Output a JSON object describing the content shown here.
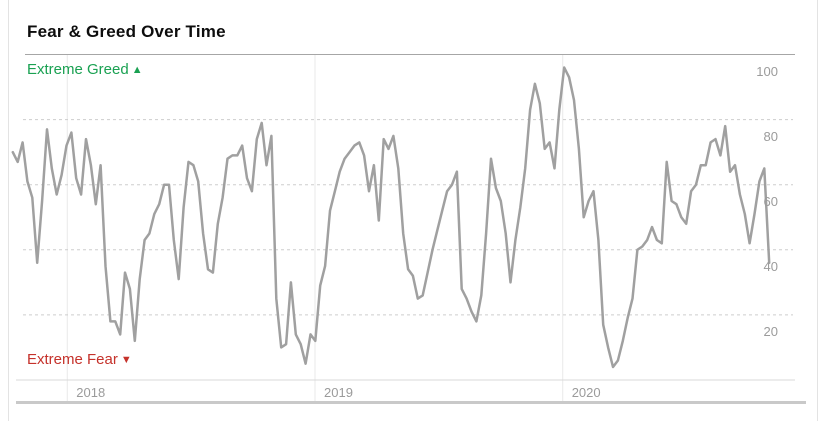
{
  "page": {
    "background": "#ffffff",
    "side_border_color": "#e3e3e3"
  },
  "header": {
    "title": "Fear & Greed Over Time"
  },
  "chart_data": {
    "type": "line",
    "title": "Fear & Greed Over Time",
    "ylim": [
      0,
      100
    ],
    "y_ticks": [
      "100",
      "80",
      "60",
      "40",
      "20"
    ],
    "y_tick_values": [
      100,
      80,
      60,
      40,
      20
    ],
    "x_ticks": [
      {
        "label": "2018",
        "year": 2018
      },
      {
        "label": "2019",
        "year": 2019
      },
      {
        "label": "2020",
        "year": 2020
      }
    ],
    "grid": {
      "horizontal": "dashed",
      "vertical": "solid",
      "legend": "none"
    },
    "axis_label_color": "#9b9b9b",
    "gridline_dashed_color": "#cdcdcd",
    "gridline_vertical_color": "#e9e9e9",
    "plot_top_border_color": "#a6a6a6",
    "plot_bottom_border_color": "#d9d9d9",
    "bottom_bar_color": "#c9c9c9",
    "series": [
      {
        "name": "Fear & Greed Index",
        "color": "#a0a0a0",
        "x_start_year": 2017.78,
        "x_step_years": 0.0197,
        "values": [
          70,
          67,
          73,
          61,
          56,
          36,
          55,
          77,
          65,
          57,
          63,
          72,
          76,
          62,
          57,
          74,
          66,
          54,
          66,
          35,
          18,
          18,
          14,
          33,
          28,
          12,
          31,
          43,
          45,
          51,
          54,
          60,
          60,
          43,
          31,
          53,
          67,
          66,
          61,
          45,
          34,
          33,
          48,
          56,
          68,
          69,
          69,
          72,
          62,
          58,
          74,
          79,
          66,
          75,
          25,
          10,
          11,
          30,
          14,
          11,
          5,
          14,
          12,
          29,
          35,
          52,
          58,
          64,
          68,
          70,
          72,
          73,
          69,
          58,
          66,
          49,
          74,
          71,
          75,
          65,
          45,
          34,
          32,
          25,
          26,
          33,
          40,
          46,
          52,
          58,
          60,
          64,
          28,
          25,
          21,
          18,
          26,
          45,
          68,
          59,
          55,
          45,
          30,
          43,
          53,
          65,
          83,
          91,
          85,
          71,
          73,
          65,
          83,
          96,
          93,
          86,
          71,
          50,
          55,
          58,
          43,
          17,
          10,
          4,
          6,
          12,
          19,
          25,
          40,
          41,
          43,
          47,
          43,
          42,
          67,
          55,
          54,
          50,
          48,
          58,
          60,
          66,
          66,
          73,
          74,
          69,
          78,
          64,
          66,
          57,
          51,
          42,
          51,
          61,
          65,
          36
        ]
      }
    ],
    "annotations": {
      "greed": {
        "label": "Extreme Greed",
        "arrow": "▲",
        "color": "#1aa152"
      },
      "fear": {
        "label": "Extreme Fear",
        "arrow": "▼",
        "color": "#c5322b"
      }
    }
  }
}
